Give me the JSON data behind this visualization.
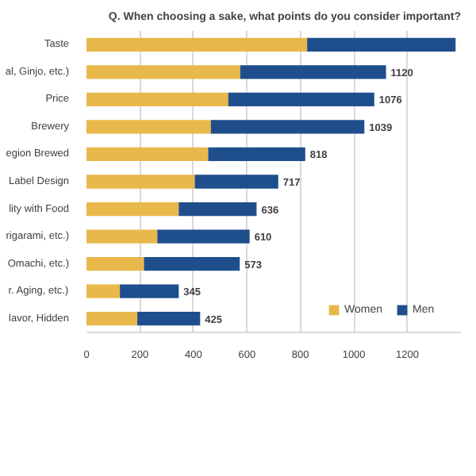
{
  "chart_data": {
    "type": "bar",
    "orientation": "horizontal",
    "stacked": true,
    "title": "Q. When choosing a sake, what points do you consider important?",
    "categories": [
      "Taste",
      "al, Ginjo, etc.)",
      "Price",
      "Brewery",
      "egion Brewed",
      "Label Design",
      "lity with Food",
      "rigarami, etc.)",
      "Omachi, etc.)",
      "r. Aging, etc.)",
      "lavor, Hidden"
    ],
    "series": [
      {
        "name": "Women",
        "color": "#e8b84b",
        "values": [
          825,
          575,
          530,
          465,
          455,
          405,
          345,
          265,
          215,
          125,
          190
        ]
      },
      {
        "name": "Men",
        "color": "#1f4e8c",
        "values": [
          555,
          545,
          546,
          574,
          363,
          312,
          291,
          345,
          358,
          220,
          235
        ]
      }
    ],
    "totals": [
      null,
      "1120",
      "1076",
      "1039",
      "818",
      "717",
      "636",
      "610",
      "573",
      "345",
      "425"
    ],
    "xlim": [
      0,
      1400
    ],
    "xticks": [
      0,
      200,
      400,
      600,
      800,
      1000,
      1200
    ],
    "grid": "x",
    "legend": "bottom"
  }
}
